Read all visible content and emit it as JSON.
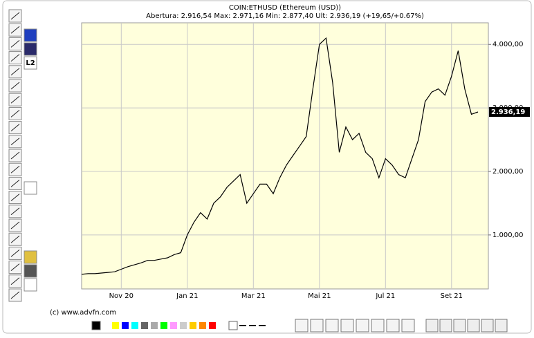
{
  "chart_data": {
    "type": "line",
    "title": "COIN:ETHUSD (Ethereum (USD))",
    "subtitle": "Abertura: 2.916,54 Max: 2.971,16 Min: 2.877,40 Ult: 2.936,19 (+19,65/+0.67%)",
    "categories": [
      null,
      null,
      null,
      null,
      null,
      null,
      "Nov 20",
      null,
      null,
      null,
      null,
      null,
      null,
      null,
      null,
      null,
      "Jan 21",
      null,
      null,
      null,
      null,
      null,
      null,
      null,
      null,
      null,
      "Mar 21",
      null,
      null,
      null,
      null,
      null,
      null,
      null,
      null,
      null,
      "Mai 21",
      null,
      null,
      null,
      null,
      null,
      null,
      null,
      null,
      null,
      "Jul 21",
      null,
      null,
      null,
      null,
      null,
      null,
      null,
      null,
      null,
      "Set 21",
      null,
      null,
      null,
      null
    ],
    "values": [
      380,
      390,
      390,
      400,
      410,
      420,
      460,
      500,
      530,
      560,
      600,
      600,
      620,
      640,
      690,
      720,
      1000,
      1200,
      1350,
      1250,
      1500,
      1600,
      1750,
      1850,
      1950,
      1500,
      1650,
      1800,
      1800,
      1650,
      1900,
      2100,
      2250,
      2400,
      2550,
      3300,
      4000,
      4100,
      3400,
      2300,
      2700,
      2500,
      2600,
      2300,
      2200,
      1900,
      2200,
      2100,
      1950,
      1900,
      2200,
      2500,
      3100,
      3250,
      3300,
      3200,
      3500,
      3900,
      3300,
      2900,
      2936.19
    ],
    "color": "#000000",
    "ylim": [
      150,
      4340
    ],
    "yticks": [
      {
        "value": 1000,
        "label": "1.000,00"
      },
      {
        "value": 2000,
        "label": "2.000,00"
      },
      {
        "value": 3000,
        "label": "3.000,00"
      },
      {
        "value": 4000,
        "label": "4.000,00"
      }
    ],
    "current_price": {
      "value": 2936.19,
      "label": "2.936,19"
    },
    "grid": true
  },
  "footer": "(c) www.advfn.com",
  "toolbar": {
    "level2": "L2"
  }
}
